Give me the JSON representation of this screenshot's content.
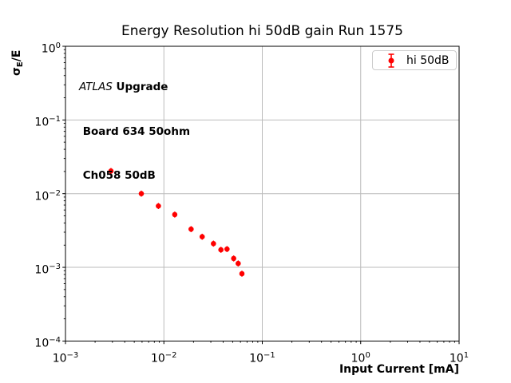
{
  "title": "Energy Resolution hi 50dB gain Run 1575",
  "axis": {
    "xlabel": "Input Current [mA]",
    "ylabel_sigma": "σ",
    "ylabel_sub": "E",
    "ylabel_rest": "/E"
  },
  "annotation": {
    "line1_italic": "ATLAS",
    "line1_bold": " Upgrade",
    "line2": " Board 634 50ohm",
    "line3": " Ch058 50dB"
  },
  "legend": {
    "label": "hi 50dB",
    "marker_color": "#ff0000"
  },
  "chart_data": {
    "type": "scatter",
    "title": "Energy Resolution hi 50dB gain Run 1575",
    "xlabel": "Input Current [mA]",
    "ylabel": "sigma_E/E",
    "xscale": "log",
    "yscale": "log",
    "xlim": [
      0.001,
      10
    ],
    "ylim": [
      0.0001,
      1
    ],
    "grid": true,
    "grid_color": "#bbbbbb",
    "axes_color": "#000000",
    "legend_position": "upper right",
    "xticks": [
      {
        "v": 0.001,
        "base": "10",
        "exp": "−3"
      },
      {
        "v": 0.01,
        "base": "10",
        "exp": "−2"
      },
      {
        "v": 0.1,
        "base": "10",
        "exp": "−1"
      },
      {
        "v": 1,
        "base": "10",
        "exp": "0"
      },
      {
        "v": 10,
        "base": "10",
        "exp": "1"
      }
    ],
    "yticks": [
      {
        "v": 1,
        "base": "10",
        "exp": "0"
      },
      {
        "v": 0.1,
        "base": "10",
        "exp": "−1"
      },
      {
        "v": 0.01,
        "base": "10",
        "exp": "−2"
      },
      {
        "v": 0.001,
        "base": "10",
        "exp": "−3"
      },
      {
        "v": 0.0001,
        "base": "10",
        "exp": "−4"
      }
    ],
    "series": [
      {
        "name": "hi 50dB",
        "color": "#ff0000",
        "marker": "circle-with-errorbar",
        "x": [
          0.0029,
          0.0059,
          0.0088,
          0.0129,
          0.0189,
          0.0245,
          0.0319,
          0.038,
          0.0438,
          0.0512,
          0.0569,
          0.0621
        ],
        "y": [
          0.0203,
          0.01,
          0.0068,
          0.0052,
          0.0033,
          0.0026,
          0.0021,
          0.00173,
          0.00177,
          0.00132,
          0.00113,
          0.00082
        ]
      }
    ]
  }
}
